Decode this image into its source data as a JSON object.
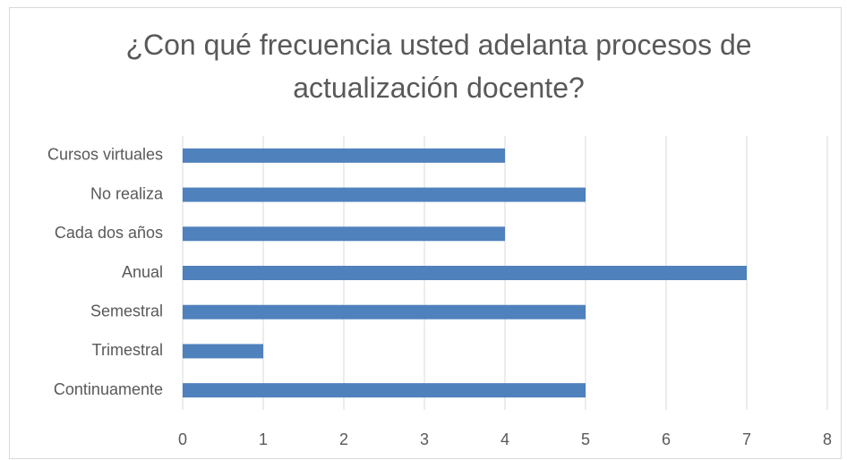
{
  "chart_data": {
    "type": "bar",
    "orientation": "horizontal",
    "title": "¿Con qué frecuencia usted adelanta procesos de actualización docente?",
    "categories": [
      "Cursos virtuales",
      "No realiza",
      "Cada dos años",
      "Anual",
      "Semestral",
      "Trimestral",
      "Continuamente"
    ],
    "values": [
      4,
      5,
      4,
      7,
      5,
      1,
      5
    ],
    "color": "#4f81bd",
    "xlim": [
      0,
      8
    ],
    "xticks": [
      0,
      1,
      2,
      3,
      4,
      5,
      6,
      7,
      8
    ],
    "grid": true
  }
}
